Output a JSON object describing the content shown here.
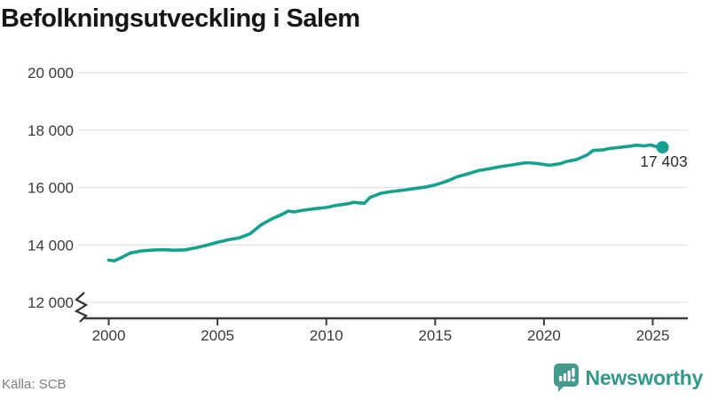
{
  "header": {
    "title": "Befolkningsutveckling i Salem"
  },
  "footer": {
    "source": "Källa: SCB"
  },
  "branding": {
    "wordmark": "Newsworthy",
    "icon": "newsworthy-bar-chart-bubble-icon"
  },
  "colors": {
    "line": "#14a290",
    "logo_bubble": "#459a8d",
    "wordmark_text": "#2f998b",
    "grid": "#e2e2e2",
    "axis": "#3d3d3d",
    "tick_text": "#3a3a3a",
    "title_text": "#161616",
    "source_text": "#7d7d7d",
    "value_label_text": "#2e2e2e"
  },
  "chart_data": {
    "type": "line",
    "title": "Befolkningsutveckling i Salem",
    "xlabel": "",
    "ylabel": "",
    "x_ticks": [
      2000,
      2005,
      2010,
      2015,
      2020,
      2025
    ],
    "x_tick_labels": [
      "2000",
      "2005",
      "2010",
      "2015",
      "2020",
      "2025"
    ],
    "y_ticks": [
      20000,
      18000,
      16000,
      14000,
      12000
    ],
    "y_tick_labels": [
      "20 000",
      "18 000",
      "16 000",
      "14 000",
      "12 000"
    ],
    "ylim": [
      12000,
      20000
    ],
    "xlim": [
      1998.6,
      2026.6
    ],
    "grid": "horizontal",
    "axis_break": true,
    "legend_position": "none",
    "end_label": "17 403",
    "end_value": 17403,
    "series": [
      {
        "name": "Befolkning i Salem",
        "color": "#14a290",
        "x": [
          2000,
          2000.25,
          2000.5,
          2001,
          2001.5,
          2002,
          2002.5,
          2003,
          2003.5,
          2004,
          2004.5,
          2005,
          2005.5,
          2006,
          2006.5,
          2007,
          2007.5,
          2008,
          2008.25,
          2008.5,
          2009,
          2009.5,
          2010,
          2010.5,
          2011,
          2011.25,
          2011.75,
          2012,
          2012.5,
          2013,
          2013.5,
          2014,
          2014.5,
          2015,
          2015.5,
          2016,
          2016.5,
          2017,
          2017.5,
          2018,
          2018.5,
          2019,
          2019.25,
          2019.75,
          2020.25,
          2020.75,
          2021,
          2021.5,
          2022,
          2022.25,
          2022.75,
          2023,
          2023.5,
          2024,
          2024.25,
          2024.6,
          2024.9,
          2025.0,
          2025.2,
          2025.45
        ],
        "values": [
          13470,
          13445,
          13530,
          13720,
          13790,
          13820,
          13835,
          13815,
          13830,
          13900,
          13990,
          14090,
          14180,
          14245,
          14390,
          14700,
          14910,
          15080,
          15180,
          15150,
          15215,
          15265,
          15305,
          15385,
          15435,
          15485,
          15450,
          15650,
          15800,
          15860,
          15905,
          15960,
          16010,
          16090,
          16210,
          16370,
          16480,
          16590,
          16655,
          16730,
          16785,
          16845,
          16865,
          16830,
          16775,
          16830,
          16900,
          16975,
          17140,
          17290,
          17315,
          17360,
          17400,
          17445,
          17475,
          17450,
          17485,
          17460,
          17420,
          17403
        ]
      }
    ]
  }
}
